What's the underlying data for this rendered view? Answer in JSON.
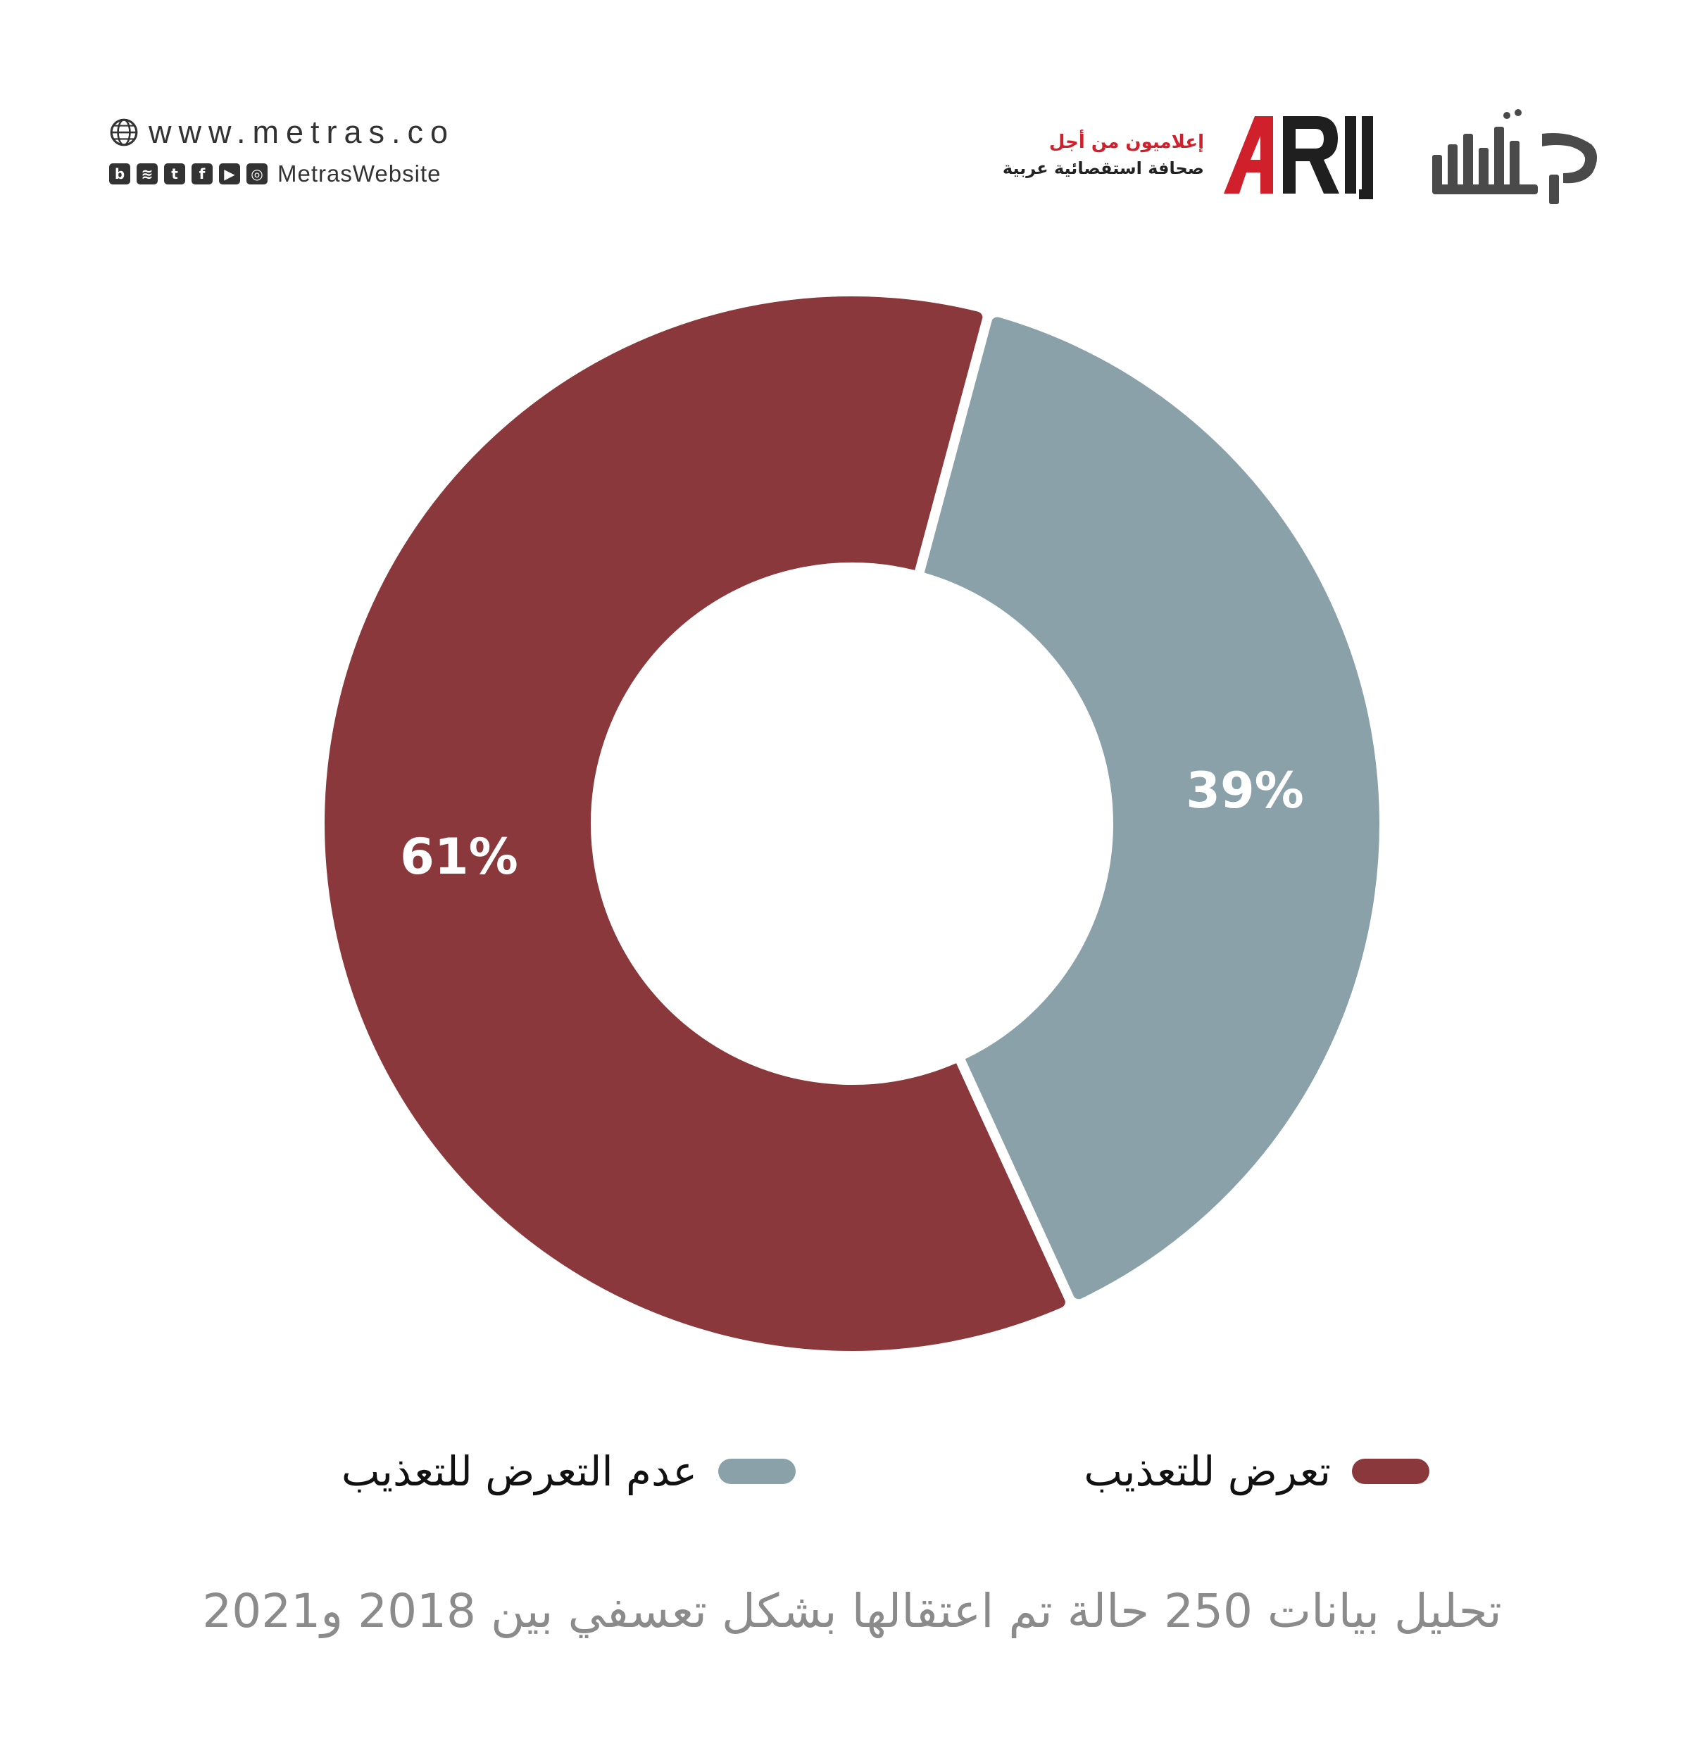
{
  "header": {
    "website": "www.metras.co",
    "handle": "MetrasWebsite",
    "social_icons": [
      "blogger-icon",
      "soundcloud-icon",
      "twitter-icon",
      "facebook-icon",
      "youtube-icon",
      "instagram-icon"
    ],
    "arij_tagline_line1": "إعلاميون من أجل",
    "arij_tagline_line2": "صحافة استقصائية عربية",
    "arij_logo_text": "ARIJ",
    "metras_logo_text": "متراس"
  },
  "colors": {
    "tortured": "#8a383b",
    "not_tortured": "#8ba1aa",
    "subtitle": "#8b8b8b",
    "arij_red": "#d0202c"
  },
  "chart_data": {
    "type": "pie",
    "donut": true,
    "categories": [
      "تعرض للتعذيب",
      "عدم التعرض للتعذيب"
    ],
    "values": [
      61,
      39
    ],
    "labels": [
      "61%",
      "39%"
    ],
    "colors": [
      "#8a383b",
      "#8ba1aa"
    ],
    "legend_position": "bottom",
    "subtitle": "تحليل بيانات 250 حالة تم اعتقالها بشكل تعسفي بين 2018 و2021"
  }
}
